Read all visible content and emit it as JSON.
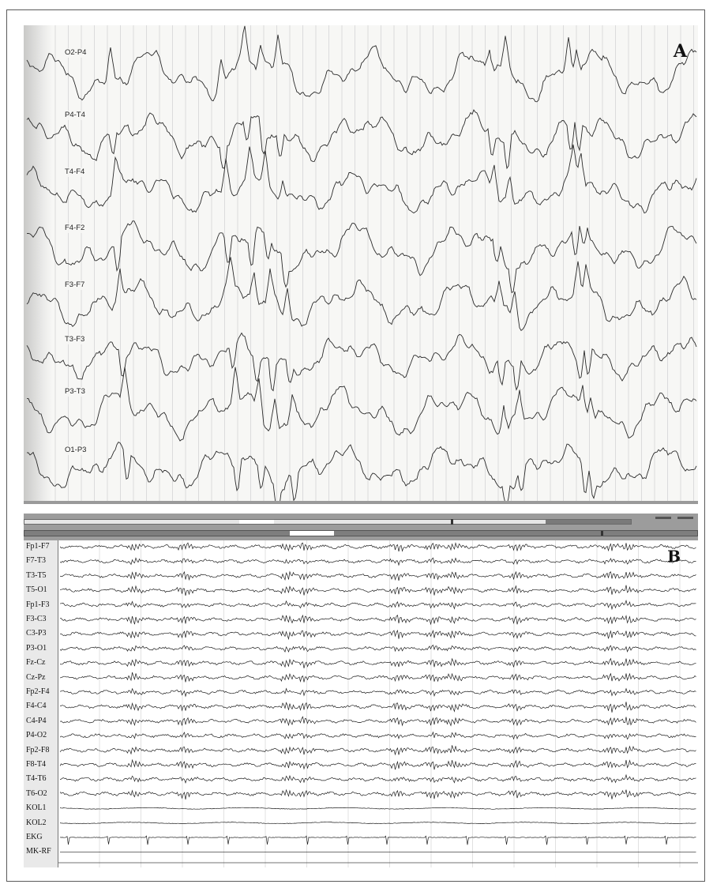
{
  "panel_a": {
    "letter": "A",
    "channels": [
      "O2-P4",
      "P4-T4",
      "T4-F4",
      "F4-F2",
      "F3-F7",
      "T3-F3",
      "P3-T3",
      "O1-P3"
    ]
  },
  "panel_b": {
    "letter": "B",
    "channels": [
      "Fp1-F7",
      "F7-T3",
      "T3-T5",
      "T5-O1",
      "Fp1-F3",
      "F3-C3",
      "C3-P3",
      "P3-O1",
      "Fz-Cz",
      "Cz-Pz",
      "Fp2-F4",
      "F4-C4",
      "C4-P4",
      "P4-O2",
      "Fp2-F8",
      "F8-T4",
      "T4-T6",
      "T6-O2",
      "KOL1",
      "KOL2",
      "EKG",
      "MK-RF"
    ]
  }
}
